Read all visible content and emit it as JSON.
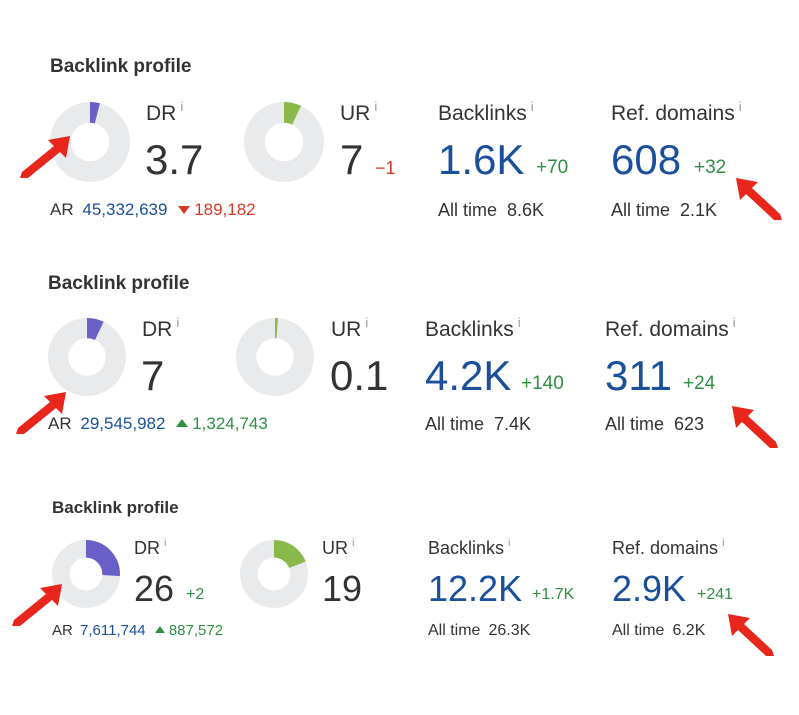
{
  "panels": [
    {
      "title": "Backlink profile",
      "dr": {
        "label": "DR",
        "info": "i",
        "value": "3.7",
        "change": "",
        "fill_fraction": 0.04,
        "color": "#6a5fc7"
      },
      "ur": {
        "label": "UR",
        "info": "i",
        "value": "7",
        "change": "−1",
        "fill_fraction": 0.07,
        "color": "#8bb84a"
      },
      "ar": {
        "label": "AR",
        "value": "45,332,639",
        "change": "189,182",
        "direction": "down"
      },
      "backlinks": {
        "label": "Backlinks",
        "info": "i",
        "value": "1.6K",
        "change": "+70",
        "alltime_label": "All time",
        "alltime_value": "8.6K"
      },
      "refdomains": {
        "label": "Ref. domains",
        "info": "i",
        "value": "608",
        "change": "+32",
        "alltime_label": "All time",
        "alltime_value": "2.1K"
      }
    },
    {
      "title": "Backlink profile",
      "dr": {
        "label": "DR",
        "info": "i",
        "value": "7",
        "change": "",
        "fill_fraction": 0.07,
        "color": "#6a5fc7"
      },
      "ur": {
        "label": "UR",
        "info": "i",
        "value": "0.1",
        "change": "",
        "fill_fraction": 0.003,
        "color": "#8bb84a"
      },
      "ar": {
        "label": "AR",
        "value": "29,545,982",
        "change": "1,324,743",
        "direction": "up"
      },
      "backlinks": {
        "label": "Backlinks",
        "info": "i",
        "value": "4.2K",
        "change": "+140",
        "alltime_label": "All time",
        "alltime_value": "7.4K"
      },
      "refdomains": {
        "label": "Ref. domains",
        "info": "i",
        "value": "311",
        "change": "+24",
        "alltime_label": "All time",
        "alltime_value": "623"
      }
    },
    {
      "title": "Backlink profile",
      "dr": {
        "label": "DR",
        "info": "i",
        "value": "26",
        "change": "+2",
        "fill_fraction": 0.26,
        "color": "#6a5fc7"
      },
      "ur": {
        "label": "UR",
        "info": "i",
        "value": "19",
        "change": "",
        "fill_fraction": 0.19,
        "color": "#8bb84a"
      },
      "ar": {
        "label": "AR",
        "value": "7,611,744",
        "change": "887,572",
        "direction": "up"
      },
      "backlinks": {
        "label": "Backlinks",
        "info": "i",
        "value": "12.2K",
        "change": "+1.7K",
        "alltime_label": "All time",
        "alltime_value": "26.3K"
      },
      "refdomains": {
        "label": "Ref. domains",
        "info": "i",
        "value": "2.9K",
        "change": "+241",
        "alltime_label": "All time",
        "alltime_value": "6.2K"
      }
    }
  ],
  "colors": {
    "accent_blue": "#1a4f9c",
    "positive_green": "#2f8f44",
    "negative_red": "#d13a26",
    "donut_track": "#e9eaec",
    "annotation_arrow": "#e8261b"
  },
  "icons": {
    "annotation": "red-arrow-icon",
    "info": "info-icon",
    "up": "triangle-up-icon",
    "down": "triangle-down-icon"
  }
}
